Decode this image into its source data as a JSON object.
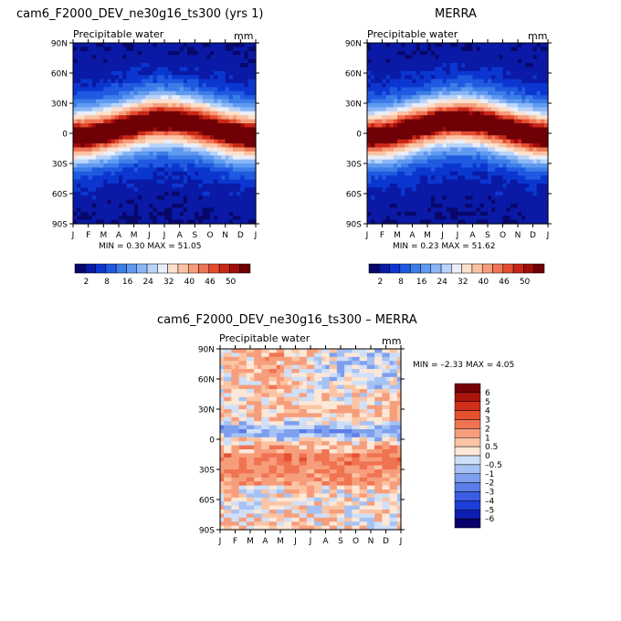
{
  "chart_data": [
    {
      "type": "heatmap",
      "title": "cam6_F2000_DEV_ne30g16_ts300 (yrs 1)",
      "subtitle": "Precipitable water",
      "units": "mm",
      "x_ticks": [
        "J",
        "F",
        "M",
        "A",
        "M",
        "J",
        "J",
        "A",
        "S",
        "O",
        "N",
        "D",
        "J"
      ],
      "y_ticks": [
        "90N",
        "60N",
        "30N",
        "0",
        "30S",
        "60S",
        "90S"
      ],
      "ylim": [
        -90,
        90
      ],
      "stats": "MIN =    0.30 MAX =   51.05",
      "colorbar_labels": [
        "2",
        "8",
        "16",
        "24",
        "32",
        "40",
        "46",
        "50"
      ],
      "colorbar_orientation": "horizontal"
    },
    {
      "type": "heatmap",
      "title": "MERRA",
      "subtitle": "Precipitable water",
      "units": "mm",
      "x_ticks": [
        "J",
        "F",
        "M",
        "A",
        "M",
        "J",
        "J",
        "A",
        "S",
        "O",
        "N",
        "D",
        "J"
      ],
      "y_ticks": [
        "90N",
        "60N",
        "30N",
        "0",
        "30S",
        "60S",
        "90S"
      ],
      "ylim": [
        -90,
        90
      ],
      "stats": "MIN =    0.23 MAX =   51.62",
      "colorbar_labels": [
        "2",
        "8",
        "16",
        "24",
        "32",
        "40",
        "46",
        "50"
      ],
      "colorbar_orientation": "horizontal"
    },
    {
      "type": "heatmap",
      "title": "cam6_F2000_DEV_ne30g16_ts300 – MERRA",
      "subtitle": "Precipitable water",
      "units": "mm",
      "x_ticks": [
        "J",
        "F",
        "M",
        "A",
        "M",
        "J",
        "J",
        "A",
        "S",
        "O",
        "N",
        "D",
        "J"
      ],
      "y_ticks": [
        "90N",
        "60N",
        "30N",
        "0",
        "30S",
        "60S",
        "90S"
      ],
      "ylim": [
        -90,
        90
      ],
      "stats": "MIN =   –2.33 MAX =    4.05",
      "colorbar_labels": [
        "6",
        "5",
        "4",
        "3",
        "2",
        "1",
        "0.5",
        "0",
        "–0.5",
        "–1",
        "–2",
        "–3",
        "–4",
        "–5",
        "–6"
      ],
      "colorbar_orientation": "vertical"
    }
  ],
  "palettes": {
    "mean": [
      "#08086b",
      "#0a1aa6",
      "#0b37d0",
      "#1f5ae0",
      "#3c7de8",
      "#5f9af0",
      "#8ab6f6",
      "#b9d3fa",
      "#e9eef9",
      "#fde0cb",
      "#fbc2a3",
      "#f69e7c",
      "#ef7655",
      "#e54c30",
      "#c92716",
      "#a00d0b",
      "#6e0006"
    ],
    "diff": [
      "#08006b",
      "#0d1fb4",
      "#1f3ed7",
      "#3a5de3",
      "#5b7de8",
      "#7e9fee",
      "#a6c2f4",
      "#cfdff8",
      "#fde7d6",
      "#fbc4a4",
      "#f69e7c",
      "#f07352",
      "#e5502f",
      "#d02f18",
      "#a9150c",
      "#750007"
    ]
  }
}
